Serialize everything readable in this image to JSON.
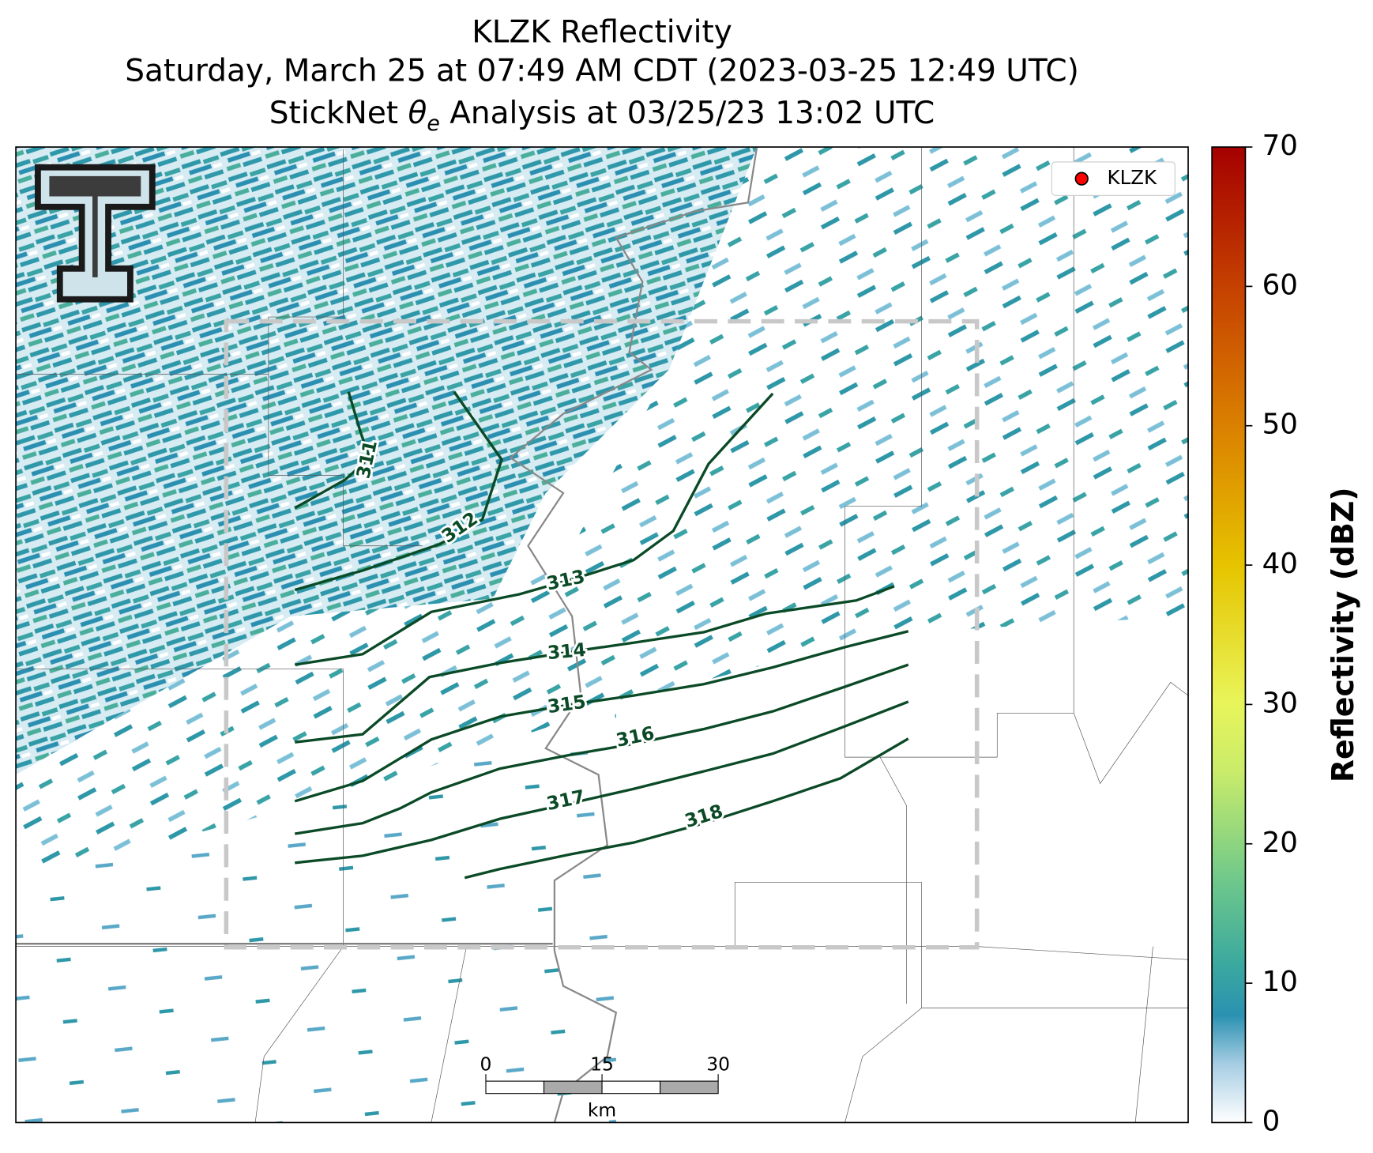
{
  "title_lines": [
    "KLZK Reflectivity",
    "Saturday, March 25 at 07:49 AM CDT (2023-03-25 12:49 UTC)"
  ],
  "analysis_title": {
    "prefix": "StickNet ",
    "symbol": "θ",
    "subscript": "e",
    "suffix": " Analysis at 03/25/23 13:02 UTC"
  },
  "legend": {
    "label": "KLZK",
    "color": "#ff0000"
  },
  "colorbar": {
    "label": "Reflectivity (dBZ)",
    "ylim": [
      0,
      70
    ],
    "ticks": [
      0,
      10,
      20,
      30,
      40,
      50,
      60,
      70
    ]
  },
  "contours": {
    "color": "#0b4a26",
    "levels": [
      311,
      312,
      313,
      314,
      315,
      316,
      317,
      318
    ]
  },
  "scale_bar": {
    "ticks": [
      0,
      15,
      30
    ],
    "unit": "km"
  }
}
